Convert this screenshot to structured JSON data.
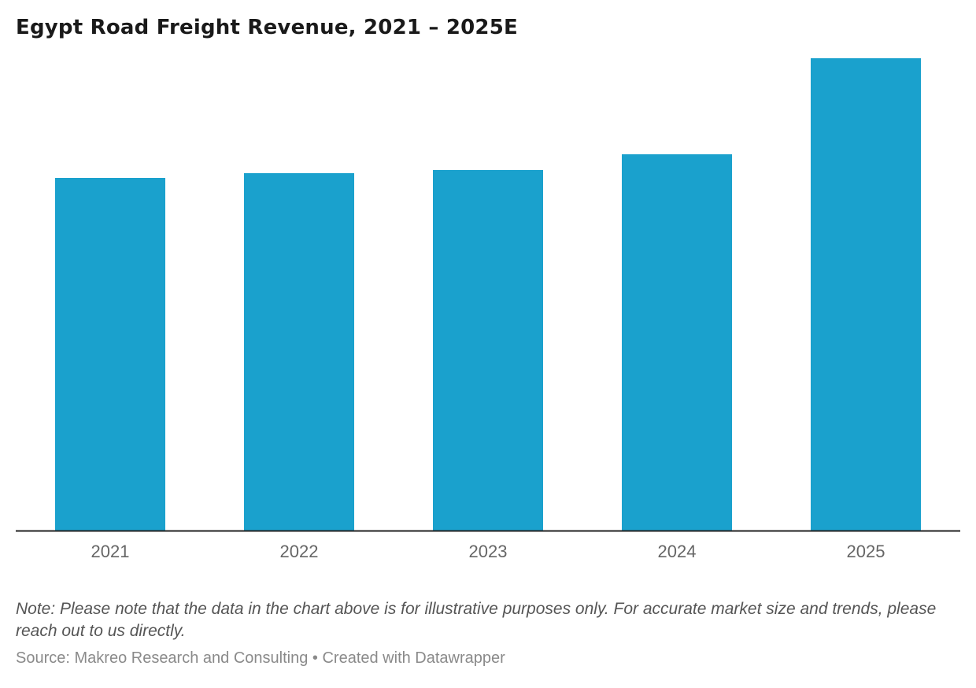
{
  "chart_data": {
    "type": "bar",
    "title": "Egypt Road Freight Revenue, 2021 – 2025E",
    "categories": [
      "2021",
      "2022",
      "2023",
      "2024",
      "2025"
    ],
    "values": [
      4.48,
      4.54,
      4.58,
      4.78,
      6.0
    ],
    "ylim": [
      0,
      6.0
    ],
    "xlabel": "",
    "ylabel": "",
    "grid": false,
    "bar_color": "#1aa1cd",
    "axis_color": "#222222",
    "tick_label_color": "#666666"
  },
  "note": "Note: Please note that the data in the chart above is for illustrative purposes only. For accurate market size and trends, please reach out to us directly.",
  "footer": {
    "source_label": "Source:",
    "source": "Makreo Research and Consulting",
    "separator": "•",
    "credit": "Created with Datawrapper"
  }
}
